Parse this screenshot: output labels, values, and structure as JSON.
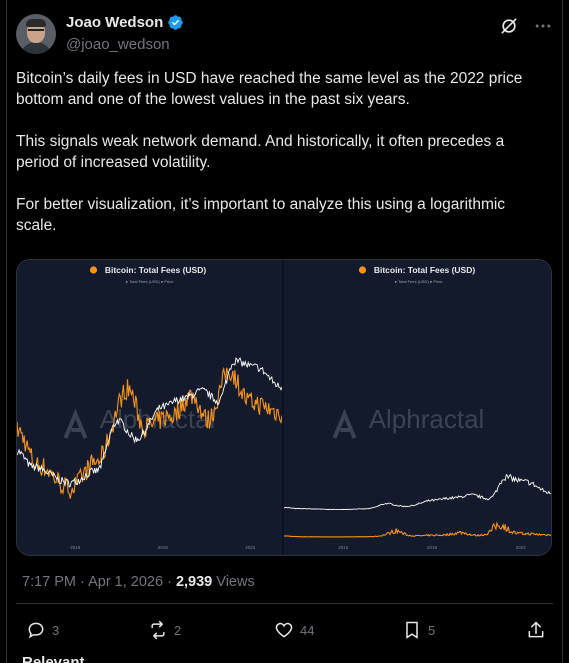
{
  "post": {
    "author": {
      "display_name": "Joao Wedson",
      "handle": "@joao_wedson",
      "verified": true
    },
    "paragraphs": [
      "Bitcoin’s daily fees in USD have reached the same level as the 2022 price bottom and one of the lowest values in the past six years.",
      "This signals weak network demand. And historically, it often precedes a period of increased volatility.",
      "For better visualization, it’s important to analyze this using a logarithmic scale."
    ],
    "timestamp": "7:17 PM · Apr 1, 2026",
    "views_count": "2,939",
    "views_label": "Views"
  },
  "actions": {
    "replies": "3",
    "reposts": "2",
    "likes": "44",
    "bookmarks": "5"
  },
  "colors": {
    "background": "#000000",
    "verified": "#1d9bf0",
    "fees_series": "#f7931a",
    "price_series": "#ffffff",
    "muted": "#71767b"
  },
  "chart_data": [
    {
      "type": "line",
      "title": "Bitcoin: Total Fees (USD)",
      "scale": "log",
      "watermark": "Alphractal",
      "legend": [
        "Total Fees (USD)",
        "Price"
      ],
      "x_ticks": [
        "2016",
        "2019",
        "2022"
      ],
      "series": [
        {
          "name": "Total Fees (USD)",
          "color": "#f7931a"
        },
        {
          "name": "Price",
          "color": "#ffffff"
        }
      ]
    },
    {
      "type": "line",
      "title": "Bitcoin: Total Fees (USD)",
      "scale": "linear",
      "watermark": "Alphractal",
      "legend": [
        "Total Fees (USD)",
        "Price"
      ],
      "x_ticks": [
        "2016",
        "2019",
        "2022"
      ],
      "series": [
        {
          "name": "Total Fees (USD)",
          "color": "#f7931a"
        },
        {
          "name": "Price",
          "color": "#ffffff"
        }
      ]
    }
  ],
  "footer": {
    "section_label": "Relevant"
  }
}
